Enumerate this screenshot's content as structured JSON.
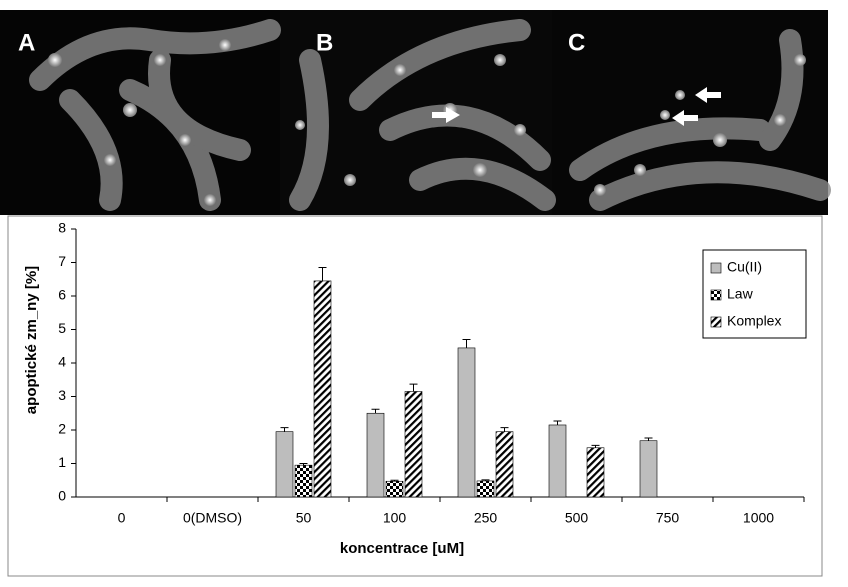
{
  "panels": [
    "A",
    "B",
    "C"
  ],
  "chart_data": {
    "type": "bar",
    "x_label": "koncentrace [uM]",
    "y_label": "apoptické zm_ny [%]",
    "categories": [
      "0",
      "0(DMSO)",
      "50",
      "100",
      "250",
      "500",
      "750",
      "1000"
    ],
    "series": [
      {
        "name": "Cu(II)",
        "color": "#bdbdbd",
        "pattern": "solid",
        "values": [
          0,
          0,
          1.95,
          2.5,
          4.45,
          2.15,
          1.68,
          0
        ],
        "errors": [
          0,
          0,
          0.12,
          0.12,
          0.25,
          0.12,
          0.08,
          0
        ]
      },
      {
        "name": "Law",
        "color": "#000000",
        "pattern": "checker",
        "values": [
          0,
          0,
          0.95,
          0.47,
          0.48,
          0,
          0,
          0
        ],
        "errors": [
          0,
          0,
          0.05,
          0.03,
          0.03,
          0,
          0,
          0
        ]
      },
      {
        "name": "Komplex",
        "color": "#000000",
        "pattern": "hatch",
        "values": [
          0,
          0,
          6.45,
          3.15,
          1.95,
          1.47,
          0,
          0
        ],
        "errors": [
          0,
          0,
          0.4,
          0.22,
          0.12,
          0.07,
          0,
          0
        ]
      }
    ],
    "ylim": [
      0,
      8
    ],
    "yticks": [
      0,
      1,
      2,
      3,
      4,
      5,
      6,
      7,
      8
    ],
    "grid": false,
    "legend": "top-right"
  }
}
